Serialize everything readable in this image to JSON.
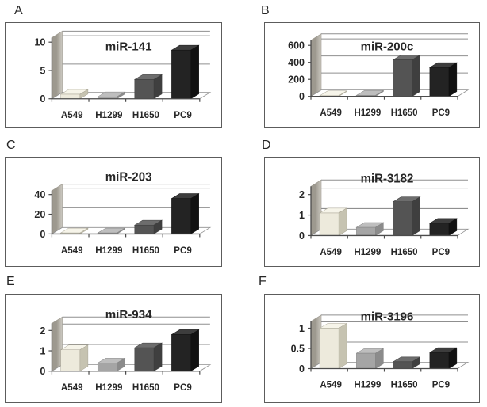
{
  "figure_type": "six-panel miRNA expression bar chart figure",
  "cell_lines": [
    "A549",
    "H1299",
    "H1650",
    "PC9"
  ],
  "chart_data": [
    {
      "type": "bar",
      "panel_label": "A",
      "title": "miR-141",
      "categories": [
        "A549",
        "H1299",
        "H1650",
        "PC9"
      ],
      "values": [
        0.8,
        0.35,
        3.4,
        8.6
      ],
      "yticks": [
        0,
        5,
        10
      ],
      "ylim": [
        0,
        10.8
      ],
      "xlabel": "",
      "ylabel": "",
      "grid": true,
      "legend": "none"
    },
    {
      "type": "bar",
      "panel_label": "B",
      "title": "miR-200c",
      "categories": [
        "A549",
        "H1299",
        "H1650",
        "PC9"
      ],
      "values": [
        8,
        12,
        430,
        340
      ],
      "yticks": [
        0,
        200,
        400,
        600
      ],
      "ylim": [
        0,
        660
      ],
      "xlabel": "",
      "ylabel": "",
      "grid": true,
      "legend": "none"
    },
    {
      "type": "bar",
      "panel_label": "C",
      "title": "miR-203",
      "categories": [
        "A549",
        "H1299",
        "H1650",
        "PC9"
      ],
      "values": [
        1,
        1,
        9,
        36
      ],
      "yticks": [
        0,
        20,
        40
      ],
      "ylim": [
        0,
        44
      ],
      "xlabel": "",
      "ylabel": "",
      "grid": true,
      "legend": "none"
    },
    {
      "type": "bar",
      "panel_label": "D",
      "title": "miR-3182",
      "categories": [
        "A549",
        "H1299",
        "H1650",
        "PC9"
      ],
      "values": [
        1.1,
        0.4,
        1.65,
        0.6
      ],
      "yticks": [
        0,
        1,
        2
      ],
      "ylim": [
        0,
        2.4
      ],
      "xlabel": "",
      "ylabel": "",
      "grid": true,
      "legend": "none"
    },
    {
      "type": "bar",
      "panel_label": "E",
      "title": "miR-934",
      "categories": [
        "A549",
        "H1299",
        "H1650",
        "PC9"
      ],
      "values": [
        1.05,
        0.4,
        1.15,
        1.8
      ],
      "yticks": [
        0,
        1,
        2
      ],
      "ylim": [
        0,
        2.35
      ],
      "xlabel": "",
      "ylabel": "",
      "grid": true,
      "legend": "none"
    },
    {
      "type": "bar",
      "panel_label": "F",
      "title": "miR-3196",
      "categories": [
        "A549",
        "H1299",
        "H1650",
        "PC9"
      ],
      "values": [
        1.0,
        0.38,
        0.17,
        0.4
      ],
      "yticks": [
        0,
        0.5,
        1
      ],
      "ylim": [
        0,
        1.17
      ],
      "xlabel": "",
      "ylabel": "",
      "grid": true,
      "legend": "none"
    }
  ],
  "styles": {
    "bar_colors": [
      {
        "name": "A549",
        "front": "#edeadc",
        "top": "#f6f4e9",
        "side": "#c6c3b1",
        "edge": "#a8a494"
      },
      {
        "name": "H1299",
        "front": "#a5a5a5",
        "top": "#bebebe",
        "side": "#8b8b8b",
        "edge": "#828282"
      },
      {
        "name": "H1650",
        "front": "#545454",
        "top": "#6d6d6d",
        "side": "#3f3f3f",
        "edge": "#3a3a3a"
      },
      {
        "name": "PC9",
        "front": "#232323",
        "top": "#3d3d3d",
        "side": "#111111",
        "edge": "#111111"
      }
    ],
    "wall_light": "#cdcac2",
    "wall_dark": "#9d998f",
    "gridline": "#8f8f8f",
    "axis": "#4c4c4c",
    "panel_border": "#5c5c5c",
    "text": "#262626"
  }
}
